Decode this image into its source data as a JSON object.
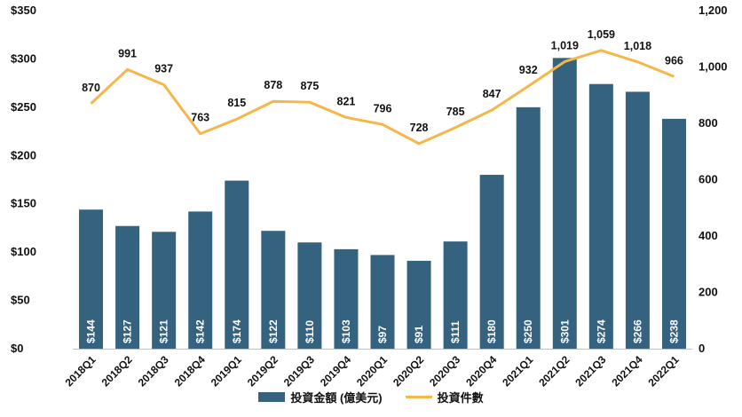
{
  "chart_data": {
    "type": "bar",
    "categories": [
      "2018Q1",
      "2018Q2",
      "2018Q3",
      "2018Q4",
      "2019Q1",
      "2019Q2",
      "2019Q3",
      "2019Q4",
      "2020Q1",
      "2020Q2",
      "2020Q3",
      "2020Q4",
      "2021Q1",
      "2021Q2",
      "2021Q3",
      "2021Q4",
      "2022Q1"
    ],
    "series": [
      {
        "name": "投資金額 (億美元)",
        "type": "bar",
        "axis": "left",
        "color": "#34627f",
        "values": [
          144,
          127,
          121,
          142,
          174,
          122,
          110,
          103,
          97,
          91,
          111,
          180,
          250,
          301,
          274,
          266,
          238
        ],
        "labels": [
          "$144",
          "$127",
          "$121",
          "$142",
          "$174",
          "$122",
          "$110",
          "$103",
          "$97",
          "$91",
          "$111",
          "$180",
          "$250",
          "$301",
          "$274",
          "$266",
          "$238"
        ]
      },
      {
        "name": "投資件數",
        "type": "line",
        "axis": "right",
        "color": "#f5b64a",
        "values": [
          870,
          991,
          937,
          763,
          815,
          878,
          875,
          821,
          796,
          728,
          785,
          847,
          932,
          1019,
          1059,
          1018,
          966
        ],
        "labels": [
          "870",
          "991",
          "937",
          "763",
          "815",
          "878",
          "875",
          "821",
          "796",
          "728",
          "785",
          "847",
          "932",
          "1,019",
          "1,059",
          "1,018",
          "966"
        ]
      }
    ],
    "y_left": {
      "ylim": [
        0,
        350
      ],
      "ticks": [
        0,
        50,
        100,
        150,
        200,
        250,
        300,
        350
      ],
      "tick_labels": [
        "$0",
        "$50",
        "$100",
        "$150",
        "$200",
        "$250",
        "$300",
        "$350"
      ]
    },
    "y_right": {
      "ylim": [
        0,
        1200
      ],
      "ticks": [
        0,
        200,
        400,
        600,
        800,
        1000,
        1200
      ],
      "tick_labels": [
        "0",
        "200",
        "400",
        "600",
        "800",
        "1,000",
        "1,200"
      ]
    },
    "grid": false,
    "legend_position": "bottom"
  }
}
